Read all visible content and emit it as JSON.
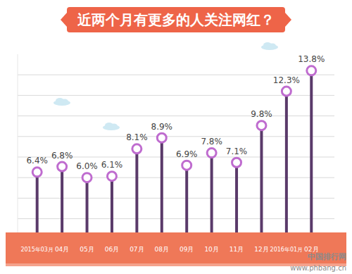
{
  "chart_data": {
    "type": "lollipop",
    "title": "近两个月有更多的人关注网红？",
    "categories": [
      "2015年03月",
      "04月",
      "05月",
      "06月",
      "07月",
      "08月",
      "09月",
      "10月",
      "11月",
      "12月",
      "2016年01月",
      "02月"
    ],
    "values": [
      6.4,
      6.8,
      6.0,
      6.1,
      8.1,
      8.9,
      6.9,
      7.8,
      7.1,
      9.8,
      12.3,
      13.8
    ],
    "value_labels": [
      "6.4%",
      "6.8%",
      "6.0%",
      "6.1%",
      "8.1%",
      "8.9%",
      "6.9%",
      "7.8%",
      "7.1%",
      "9.8%",
      "12.3%",
      "13.8%"
    ],
    "color": "#5a3a6a",
    "marker": "circle",
    "ylim": [
      2,
      15
    ],
    "yticks": [
      3,
      4.5,
      6,
      7.5,
      9,
      10.5,
      12,
      13.5
    ],
    "grid": true,
    "data_labels": true,
    "tick_labels": "x",
    "annotations": [
      "中国排行网",
      "www.phbang.cn"
    ]
  }
}
